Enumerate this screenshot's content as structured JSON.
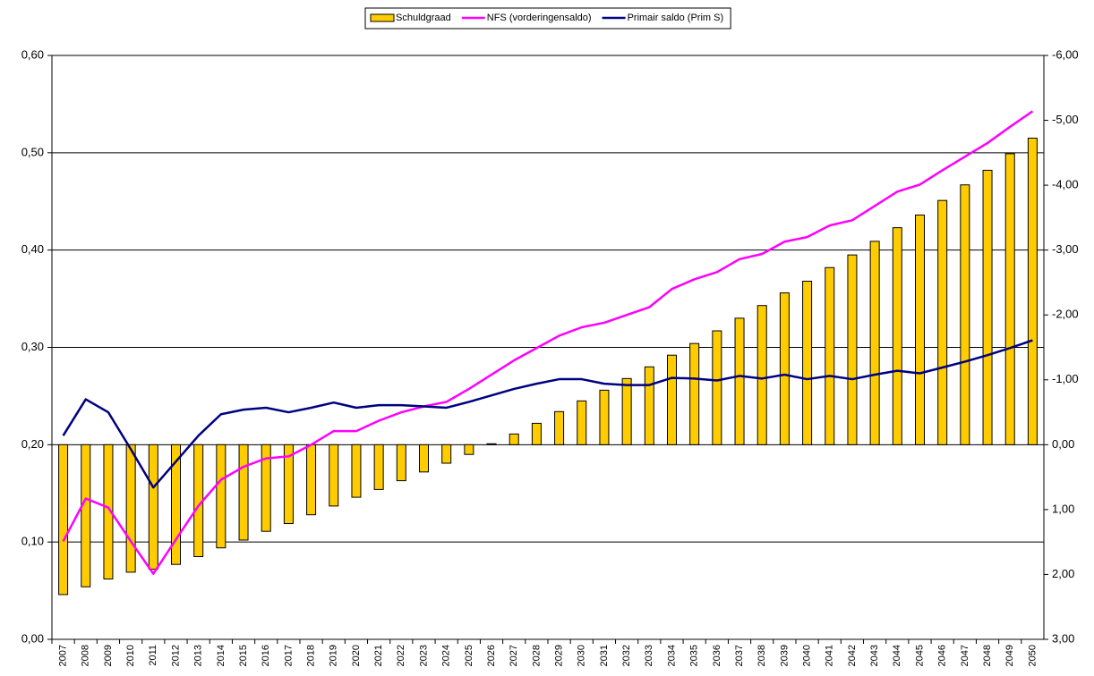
{
  "chart_data": {
    "type": "bar-line",
    "categories": [
      "2007",
      "2008",
      "2009",
      "2010",
      "2011",
      "2012",
      "2013",
      "2014",
      "2015",
      "2016",
      "2017",
      "2018",
      "2019",
      "2020",
      "2021",
      "2022",
      "2023",
      "2024",
      "2025",
      "2026",
      "2027",
      "2028",
      "2029",
      "2030",
      "2031",
      "2032",
      "2033",
      "2034",
      "2035",
      "2036",
      "2037",
      "2038",
      "2039",
      "2040",
      "2041",
      "2042",
      "2043",
      "2044",
      "2045",
      "2046",
      "2047",
      "2048",
      "2049",
      "2050"
    ],
    "series": [
      {
        "name": "Schuldgraad",
        "type": "bar",
        "axis": "y",
        "color": "#FFCC00",
        "values": [
          0.046,
          0.054,
          0.062,
          0.069,
          0.072,
          0.077,
          0.085,
          0.094,
          0.102,
          0.111,
          0.119,
          0.128,
          0.137,
          0.146,
          0.154,
          0.163,
          0.172,
          0.181,
          0.19,
          0.201,
          0.211,
          0.222,
          0.234,
          0.245,
          0.256,
          0.268,
          0.28,
          0.292,
          0.304,
          0.317,
          0.33,
          0.343,
          0.356,
          0.368,
          0.382,
          0.395,
          0.409,
          0.423,
          0.436,
          0.451,
          0.467,
          0.482,
          0.499,
          0.515
        ]
      },
      {
        "name": "NFS (vorderingensaldo)",
        "type": "line",
        "axis": "y2",
        "color": "#FF00FF",
        "values": [
          1.49,
          0.83,
          0.97,
          1.49,
          1.99,
          1.46,
          0.94,
          0.54,
          0.34,
          0.21,
          0.18,
          0,
          -0.21,
          -0.21,
          -0.37,
          -0.5,
          -0.59,
          -0.66,
          -0.86,
          -1.08,
          -1.3,
          -1.49,
          -1.68,
          -1.81,
          -1.88,
          -2.0,
          -2.12,
          -2.4,
          -2.55,
          -2.66,
          -2.86,
          -2.94,
          -3.13,
          -3.2,
          -3.38,
          -3.46,
          -3.68,
          -3.9,
          -4.01,
          -4.23,
          -4.44,
          -4.65,
          -4.9,
          -5.14
        ]
      },
      {
        "name": "Primair saldo (Prim S)",
        "type": "line",
        "axis": "y2",
        "color": "#000080",
        "values": [
          -0.14,
          -0.7,
          -0.5,
          0.07,
          0.66,
          0.26,
          -0.14,
          -0.47,
          -0.54,
          -0.57,
          -0.5,
          -0.57,
          -0.65,
          -0.57,
          -0.61,
          -0.61,
          -0.59,
          -0.57,
          -0.66,
          -0.76,
          -0.86,
          -0.94,
          -1.01,
          -1.01,
          -0.94,
          -0.92,
          -0.92,
          -1.03,
          -1.02,
          -0.99,
          -1.06,
          -1.02,
          -1.08,
          -1.01,
          -1.06,
          -1.01,
          -1.08,
          -1.14,
          -1.1,
          -1.19,
          -1.28,
          -1.38,
          -1.49,
          -1.61
        ]
      }
    ],
    "ylim": [
      0,
      0.6
    ],
    "yticks": [
      {
        "value": 0,
        "label": "0,00"
      },
      {
        "value": 0.1,
        "label": "0,10"
      },
      {
        "value": 0.2,
        "label": "0,20"
      },
      {
        "value": 0.3,
        "label": "0,30"
      },
      {
        "value": 0.4,
        "label": "0,40"
      },
      {
        "value": 0.5,
        "label": "0,50"
      },
      {
        "value": 0.6,
        "label": "0,60"
      }
    ],
    "y2lim": [
      3,
      -6
    ],
    "y2ticks": [
      {
        "value": 3,
        "label": "3,00"
      },
      {
        "value": 2,
        "label": "2,00"
      },
      {
        "value": 1,
        "label": "1,00"
      },
      {
        "value": 0,
        "label": "0,00"
      },
      {
        "value": -1,
        "label": "-1,00"
      },
      {
        "value": -2,
        "label": "-2,00"
      },
      {
        "value": -3,
        "label": "-3,00"
      },
      {
        "value": -4,
        "label": "-4,00"
      },
      {
        "value": -5,
        "label": "-5,00"
      },
      {
        "value": -6,
        "label": "-6,00"
      }
    ],
    "grid": true,
    "legend": "top"
  }
}
